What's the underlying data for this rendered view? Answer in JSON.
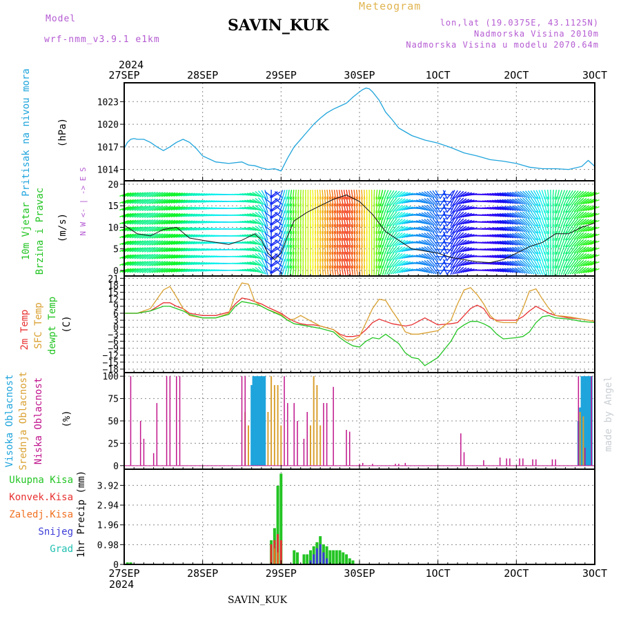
{
  "header": {
    "model_label": "Model",
    "model_name": "wrf-nmm_v3.9.1  e1km",
    "station": "SAVIN_KUK",
    "title": "Meteogram",
    "lonlat": "lon,lat (19.0375E, 43.1125N)",
    "elevation": "Nadmorska Visina 2010m",
    "model_elevation": "Nadmorska Visina u modelu 2070.64m",
    "year_top": "2024",
    "year_bottom": "2024",
    "footer_station": "SAVIN_KUK",
    "watermark": "made by Angel"
  },
  "colors": {
    "pressure": "#1fa4dc",
    "wind_label": "#22c422",
    "t2m": "#e83030",
    "sfc": "#d9a030",
    "dew": "#22c422",
    "cloud_high": "#1fa4dc",
    "cloud_mid": "#d9a030",
    "cloud_low": "#c0148c",
    "precip_total": "#22c422",
    "precip_conv": "#e83030",
    "precip_frozen": "#f07020",
    "snow": "#3b3bd8",
    "hail": "#20c0b0",
    "header_purple": "#b45ad2",
    "header_gold": "#e0b450"
  },
  "chart_data": [
    {
      "type": "line",
      "panel": "pressure",
      "ylabel": [
        "Pritisak na nivou mora",
        "(hPa)"
      ],
      "ylim": [
        1012.5,
        1025.5
      ],
      "yticks": [
        1014,
        1017,
        1020,
        1023
      ],
      "grid": true,
      "x_ticks": [
        "27SEP",
        "28SEP",
        "29SEP",
        "30SEP",
        "1OCT",
        "2OCT",
        "3OCT"
      ],
      "x_hours": [
        0,
        24,
        48,
        72,
        96,
        120,
        144
      ],
      "series": [
        {
          "x": [
            0,
            1,
            2,
            3,
            4,
            6,
            8,
            10,
            12,
            14,
            16,
            18,
            20,
            22,
            24,
            28,
            32,
            36,
            38,
            40,
            42,
            44,
            46,
            48,
            50,
            52,
            54,
            56,
            58,
            60,
            62,
            64,
            66,
            68,
            70,
            72,
            73,
            74,
            75,
            76,
            78,
            80,
            82,
            84,
            86,
            88,
            90,
            92,
            96,
            100,
            104,
            108,
            112,
            116,
            120,
            124,
            128,
            132,
            136,
            140,
            142,
            144
          ],
          "values": [
            1016.8,
            1017.6,
            1018.0,
            1018.1,
            1018.0,
            1018.0,
            1017.6,
            1017.0,
            1016.5,
            1017.0,
            1017.6,
            1018.0,
            1017.6,
            1016.8,
            1015.8,
            1015.0,
            1014.8,
            1015.0,
            1014.6,
            1014.5,
            1014.2,
            1014.0,
            1014.1,
            1013.8,
            1015.5,
            1017.0,
            1018.0,
            1019.0,
            1020.0,
            1020.8,
            1021.5,
            1022.0,
            1022.4,
            1022.8,
            1023.6,
            1024.3,
            1024.6,
            1024.8,
            1024.7,
            1024.3,
            1023.2,
            1021.6,
            1020.6,
            1019.5,
            1019.0,
            1018.5,
            1018.2,
            1017.9,
            1017.5,
            1016.9,
            1016.2,
            1015.8,
            1015.3,
            1015.1,
            1014.8,
            1014.3,
            1014.1,
            1014.1,
            1014.0,
            1014.4,
            1015.2,
            1014.4
          ]
        }
      ]
    },
    {
      "type": "line",
      "panel": "wind",
      "ylabel": [
        "10m Vjetar",
        "Brzina i Pravac",
        "(m/s)"
      ],
      "ylim": [
        -1.3,
        20.8
      ],
      "yticks": [
        0,
        5,
        10,
        15,
        20
      ],
      "grid": true,
      "compass": "N  W <- | -> E  S",
      "series": [
        {
          "name": "speed",
          "x": [
            0,
            4,
            8,
            12,
            16,
            20,
            24,
            28,
            32,
            36,
            40,
            42,
            44,
            46,
            48,
            50,
            52,
            56,
            60,
            64,
            68,
            72,
            76,
            80,
            84,
            88,
            92,
            96,
            100,
            104,
            108,
            112,
            116,
            120,
            124,
            128,
            132,
            136,
            140,
            144
          ],
          "values": [
            10.5,
            8.5,
            8.0,
            9.5,
            10.0,
            7.5,
            7.0,
            6.5,
            6.0,
            7.0,
            8.5,
            7.0,
            4.0,
            2.5,
            4.0,
            8.0,
            11.5,
            13.5,
            15.0,
            16.5,
            17.5,
            16.0,
            13.0,
            9.0,
            7.0,
            5.0,
            4.5,
            4.0,
            3.0,
            2.5,
            2.0,
            1.8,
            2.5,
            4.0,
            5.5,
            6.5,
            8.5,
            8.5,
            10.0,
            11.0
          ]
        }
      ],
      "barb_direction_deg": [
        250,
        245,
        240,
        245,
        250,
        255,
        260,
        265,
        270,
        275,
        290,
        320,
        350,
        10,
        200,
        190,
        185,
        180,
        175,
        172,
        170,
        175,
        180,
        200,
        230,
        260,
        300,
        330,
        20,
        60,
        90,
        100,
        110,
        120,
        140,
        160,
        190,
        210,
        230,
        250
      ]
    },
    {
      "type": "line",
      "panel": "temperature",
      "ylabel": [
        "2m Temp",
        "SFC Temp",
        "dewpt Temp",
        "(C)"
      ],
      "ylim": [
        -19.5,
        22
      ],
      "yticks": [
        21,
        18,
        15,
        12,
        9,
        6,
        3,
        0,
        -3,
        -6,
        -9,
        -12,
        -15,
        -18
      ],
      "grid": true,
      "x": [
        0,
        4,
        8,
        12,
        14,
        16,
        18,
        20,
        24,
        28,
        32,
        34,
        36,
        38,
        40,
        42,
        44,
        48,
        50,
        52,
        54,
        56,
        58,
        60,
        64,
        66,
        68,
        70,
        72,
        74,
        76,
        78,
        80,
        82,
        84,
        86,
        88,
        90,
        92,
        96,
        100,
        102,
        104,
        106,
        108,
        110,
        112,
        114,
        116,
        120,
        122,
        124,
        126,
        128,
        130,
        132,
        136,
        140,
        144
      ],
      "series": [
        {
          "name": "2m Temp",
          "values": [
            6.0,
            6.0,
            7.0,
            10.5,
            10.5,
            9.0,
            8.0,
            6.0,
            5.0,
            5.0,
            6.5,
            10.0,
            12.5,
            12.0,
            11.0,
            10.0,
            8.5,
            6.0,
            4.0,
            2.5,
            1.5,
            1.0,
            1.0,
            0.5,
            -1.0,
            -3.0,
            -4.0,
            -4.0,
            -3.5,
            -1.0,
            2.0,
            3.5,
            2.5,
            1.5,
            1.0,
            0.5,
            1.0,
            2.5,
            4.0,
            1.0,
            1.5,
            2.0,
            5.0,
            8.0,
            9.5,
            8.0,
            4.0,
            3.0,
            3.0,
            3.0,
            4.5,
            7.0,
            9.0,
            7.5,
            6.0,
            5.0,
            4.0,
            3.5,
            2.5
          ]
        },
        {
          "name": "SFC Temp",
          "values": [
            6.0,
            6.0,
            8.0,
            16.0,
            17.5,
            13.0,
            8.0,
            5.0,
            4.0,
            4.0,
            6.0,
            14.0,
            19.0,
            18.5,
            11.0,
            9.0,
            7.5,
            5.5,
            3.0,
            3.5,
            5.0,
            3.5,
            2.0,
            0.5,
            -1.0,
            -3.5,
            -5.5,
            -5.5,
            -4.0,
            2.0,
            8.0,
            12.0,
            11.5,
            7.0,
            3.0,
            -2.0,
            -3.0,
            -3.0,
            -2.5,
            -1.5,
            3.0,
            10.0,
            16.0,
            17.0,
            14.0,
            10.0,
            5.0,
            2.5,
            2.0,
            2.0,
            8.0,
            15.5,
            16.5,
            12.0,
            8.0,
            5.0,
            4.5,
            3.5,
            2.5
          ]
        },
        {
          "name": "dewpt Temp",
          "values": [
            6.0,
            6.0,
            7.0,
            9.0,
            9.0,
            8.0,
            7.0,
            5.5,
            4.0,
            4.0,
            5.5,
            9.0,
            11.0,
            10.5,
            10.0,
            9.0,
            7.5,
            5.0,
            3.0,
            1.5,
            1.0,
            0.5,
            0.0,
            -0.5,
            -2.0,
            -4.5,
            -6.5,
            -8.0,
            -8.5,
            -6.0,
            -4.5,
            -5.0,
            -3.0,
            -5.0,
            -7.0,
            -11.0,
            -13.0,
            -13.5,
            -16.5,
            -13.0,
            -6.0,
            -1.0,
            1.0,
            2.5,
            2.5,
            1.5,
            0.0,
            -3.0,
            -5.0,
            -4.5,
            -4.0,
            -2.0,
            2.0,
            4.5,
            5.0,
            4.0,
            3.5,
            2.5,
            2.0
          ]
        }
      ]
    },
    {
      "type": "bar",
      "panel": "clouds",
      "ylabel": [
        "Visoka Oblacnost",
        "Srednja Oblacnost",
        "Niska Oblacnost",
        "(%)"
      ],
      "ylim": [
        -4,
        104
      ],
      "yticks": [
        0,
        25,
        50,
        75,
        100
      ],
      "grid": true,
      "series": [
        {
          "name": "Visoka Oblacnost",
          "x": [
            39,
            39.5,
            40,
            40.5,
            41,
            41.5,
            42,
            42.5,
            43,
            139,
            139.5,
            140,
            140.5,
            141,
            141.5,
            142,
            142.5,
            143
          ],
          "values": [
            90,
            100,
            100,
            100,
            100,
            100,
            100,
            100,
            100,
            50,
            65,
            100,
            100,
            100,
            100,
            100,
            100,
            100
          ]
        },
        {
          "name": "Srednja Oblacnost",
          "x": [
            37,
            38,
            44,
            45,
            46,
            47,
            48,
            57,
            58,
            59,
            60,
            139.5,
            140.5
          ],
          "values": [
            60,
            45,
            60,
            100,
            90,
            90,
            45,
            45,
            100,
            90,
            45,
            60,
            55
          ]
        },
        {
          "name": "Niska Oblacnost",
          "x": [
            2,
            5,
            6,
            9,
            10,
            13,
            14,
            16,
            17,
            36,
            37,
            49,
            50,
            52,
            53,
            55,
            56,
            61,
            62,
            64,
            68,
            69,
            72,
            73,
            76,
            83,
            84,
            86,
            103,
            104,
            110,
            115,
            117,
            118,
            121,
            122,
            125,
            126,
            131,
            132,
            139,
            141,
            143
          ],
          "values": [
            100,
            50,
            30,
            14,
            70,
            100,
            100,
            100,
            100,
            100,
            100,
            100,
            70,
            70,
            50,
            30,
            60,
            70,
            70,
            88,
            40,
            38,
            2,
            3,
            2,
            2,
            2,
            3,
            36,
            15,
            6,
            9,
            8,
            8,
            8,
            8,
            7,
            7,
            7,
            7,
            100,
            20,
            100
          ]
        }
      ]
    },
    {
      "type": "bar",
      "panel": "precip",
      "ylabel": [
        "1hr Precip (mm)"
      ],
      "legend": [
        "Ukupna Kisa",
        "Konvek.Kisa",
        "Zaledj.Kisa",
        "Snijeg",
        "Grad"
      ],
      "ylim": [
        0,
        4.72
      ],
      "yticks": [
        0,
        0.98,
        1.96,
        2.94,
        3.92
      ],
      "grid": true,
      "series": [
        {
          "name": "Ukupna Kisa",
          "x": [
            1,
            2,
            45,
            46,
            47,
            48,
            52,
            53,
            55,
            56,
            57,
            58,
            59,
            60,
            61,
            62,
            63,
            64,
            65,
            66,
            67,
            68,
            69,
            70
          ],
          "values": [
            0.1,
            0.1,
            1.2,
            1.8,
            3.9,
            4.5,
            0.7,
            0.6,
            0.5,
            0.5,
            0.7,
            0.9,
            1.1,
            1.4,
            1.0,
            0.9,
            0.7,
            0.7,
            0.7,
            0.7,
            0.6,
            0.5,
            0.3,
            0.2
          ]
        },
        {
          "name": "Konvek.Kisa",
          "x": [
            45,
            46,
            47,
            48
          ],
          "values": [
            1.0,
            1.2,
            1.5,
            1.2
          ]
        },
        {
          "name": "Zaledj.Kisa",
          "x": [
            46,
            47
          ],
          "values": [
            0.8,
            0.6
          ]
        },
        {
          "name": "Snijeg",
          "x": [
            57,
            58,
            59,
            60,
            61,
            62
          ],
          "values": [
            0.2,
            0.5,
            0.8,
            1.0,
            0.6,
            0.3
          ]
        }
      ]
    }
  ]
}
